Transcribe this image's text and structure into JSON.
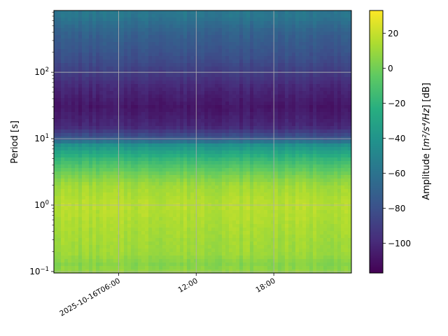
{
  "chart_data": {
    "type": "heatmap",
    "title": "",
    "ylabel": "Period [s]",
    "xlabel": "",
    "y_scale": "log",
    "ylim": [
      0.095,
      850
    ],
    "xlim": [
      "2025-10-16T01:00",
      "2025-10-17T00:00"
    ],
    "x_ticks": [
      {
        "value": "2025-10-16T06:00",
        "label": "2025-10-16T06:00"
      },
      {
        "value": "2025-10-16T12:00",
        "label": "12:00"
      },
      {
        "value": "2025-10-16T18:00",
        "label": "18:00"
      }
    ],
    "y_ticks": [
      {
        "value": 0.1,
        "base": "10",
        "exp": "−1"
      },
      {
        "value": 1,
        "base": "10",
        "exp": "0"
      },
      {
        "value": 10,
        "base": "10",
        "exp": "1"
      },
      {
        "value": 100,
        "base": "10",
        "exp": "2"
      }
    ],
    "grid": true,
    "colormap": "viridis",
    "colorbar": {
      "label_prefix": "Amplitude [",
      "label_math": "m²/s⁴/Hz",
      "label_suffix": "] [dB]",
      "range": [
        -117,
        33
      ],
      "ticks": [
        "20",
        "0",
        "−20",
        "−40",
        "−60",
        "−80",
        "−100"
      ],
      "tick_values": [
        20,
        0,
        -20,
        -40,
        -60,
        -80,
        -100
      ]
    },
    "period_profile_db": [
      {
        "period": 0.1,
        "db": 8
      },
      {
        "period": 0.13,
        "db": 5
      },
      {
        "period": 0.18,
        "db": 10
      },
      {
        "period": 0.4,
        "db": 13
      },
      {
        "period": 1,
        "db": 17
      },
      {
        "period": 2,
        "db": 11
      },
      {
        "period": 3,
        "db": 0
      },
      {
        "period": 5,
        "db": -18
      },
      {
        "period": 8,
        "db": -42
      },
      {
        "period": 10,
        "db": -75
      },
      {
        "period": 15,
        "db": -100
      },
      {
        "period": 30,
        "db": -108
      },
      {
        "period": 60,
        "db": -100
      },
      {
        "period": 150,
        "db": -82
      },
      {
        "period": 400,
        "db": -70
      },
      {
        "period": 700,
        "db": -58
      }
    ]
  }
}
